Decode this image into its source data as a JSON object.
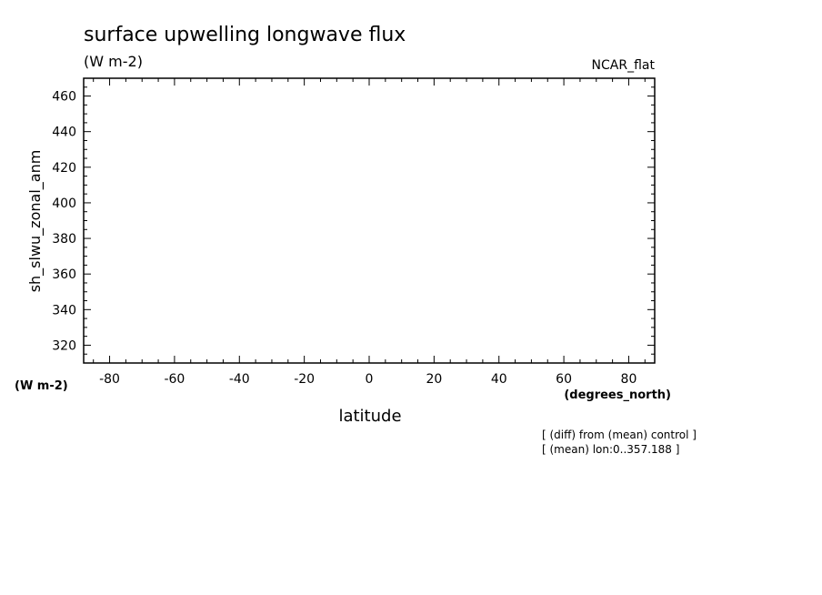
{
  "chart_data": {
    "type": "line",
    "title": "surface upwelling longwave flux",
    "subtitle": "(W m-2)",
    "corner_label": "NCAR_flat",
    "ylabel": "sh_slwu_zonal_anm",
    "yunits": "(W m-2)",
    "xlabel": "latitude",
    "xunits": "(degrees_north)",
    "xlim": [
      -88,
      88
    ],
    "ylim": [
      310,
      470
    ],
    "xticks": [
      -80,
      -60,
      -40,
      -20,
      0,
      20,
      40,
      60,
      80
    ],
    "xtick_labels": [
      "-80",
      "-60",
      "-40",
      "-20",
      "0",
      "20",
      "40",
      "60",
      "80"
    ],
    "yticks": [
      320,
      340,
      360,
      380,
      400,
      420,
      440,
      460
    ],
    "ytick_labels": [
      "320",
      "340",
      "360",
      "380",
      "400",
      "420",
      "440",
      "460"
    ],
    "grid": false,
    "series": [],
    "notes": [
      "[ (diff) from (mean) control ]",
      "[ (mean) lon:0..357.188 ]"
    ]
  }
}
